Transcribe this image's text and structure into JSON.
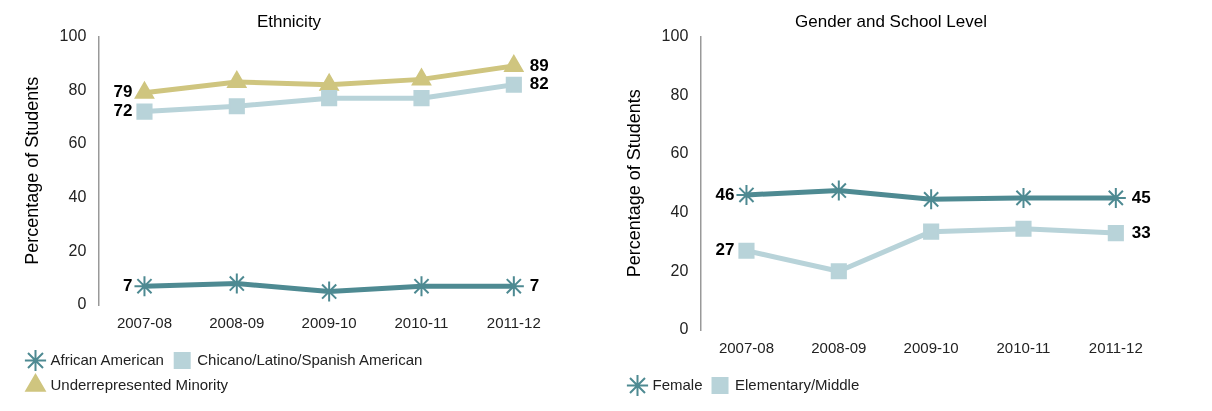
{
  "chart_data": [
    {
      "type": "line",
      "title": "Ethnicity",
      "ylabel": "Percentage of Students",
      "categories": [
        "2007-08",
        "2008-09",
        "2009-10",
        "2010-11",
        "2011-12"
      ],
      "ylim": [
        0,
        100
      ],
      "yticks": [
        0,
        20,
        40,
        60,
        80,
        100
      ],
      "grid": false,
      "legend": "bottom",
      "series": [
        {
          "name": "African American",
          "color": "#4e8a92",
          "marker": "cross",
          "values": [
            7,
            8,
            5,
            7,
            7
          ],
          "value_labels": [
            "7",
            null,
            null,
            null,
            "7"
          ]
        },
        {
          "name": "Chicano/Latino/Spanish American",
          "color": "#b8d3d9",
          "marker": "square",
          "values": [
            72,
            74,
            77,
            77,
            82
          ],
          "value_labels": [
            "72",
            null,
            null,
            null,
            "82"
          ]
        },
        {
          "name": "Underrepresented Minority",
          "color": "#cfc57f",
          "marker": "triangle",
          "values": [
            79,
            83,
            82,
            84,
            89
          ],
          "value_labels": [
            "79",
            null,
            null,
            null,
            "89"
          ]
        }
      ]
    },
    {
      "type": "line",
      "title": "Gender and School Level",
      "ylabel": "Percentage of Students",
      "categories": [
        "2007-08",
        "2008-09",
        "2009-10",
        "2010-11",
        "2011-12"
      ],
      "ylim": [
        0,
        100
      ],
      "yticks": [
        0,
        20,
        40,
        60,
        80,
        100
      ],
      "grid": false,
      "legend": "bottom",
      "series": [
        {
          "name": "Female",
          "color": "#4e8a92",
          "marker": "cross",
          "values": [
            46,
            47.5,
            44.5,
            45,
            45
          ],
          "value_labels": [
            "46",
            null,
            null,
            null,
            "45"
          ]
        },
        {
          "name": "Elementary/Middle",
          "color": "#b8d3d9",
          "marker": "square",
          "values": [
            27,
            20,
            33.5,
            34.5,
            33
          ],
          "value_labels": [
            "27",
            null,
            null,
            null,
            "33"
          ]
        }
      ]
    }
  ]
}
